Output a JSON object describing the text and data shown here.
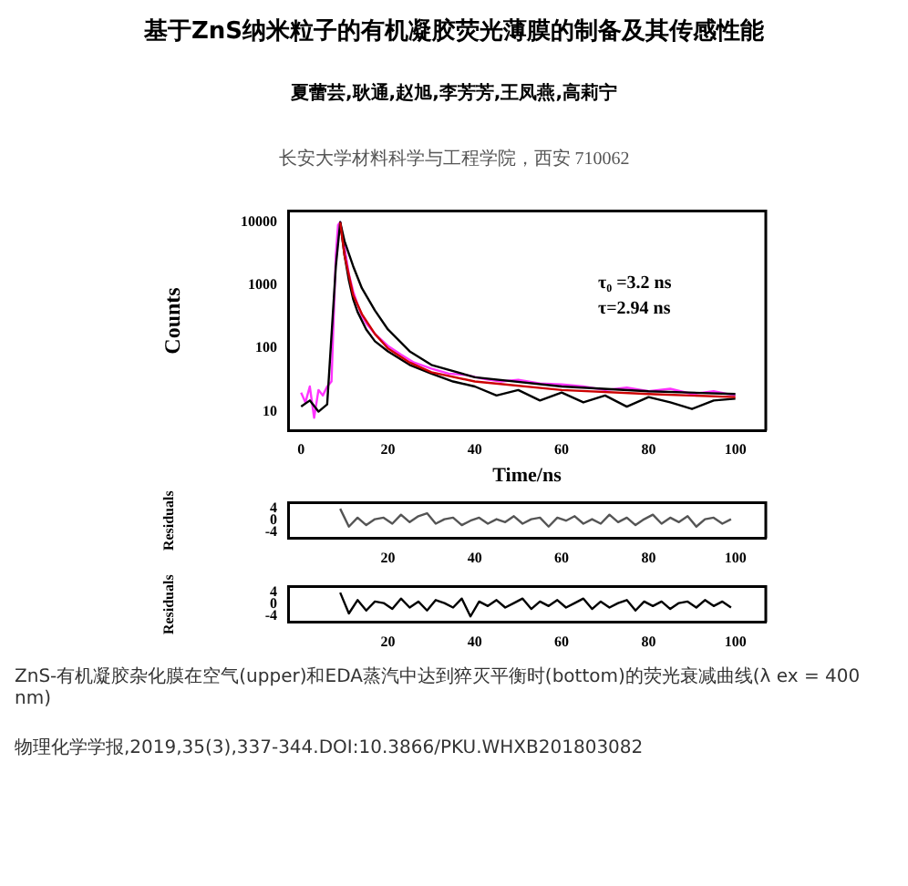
{
  "chart_data": [
    {
      "type": "line",
      "title": "基于ZnS纳米粒子的有机凝胶荧光薄膜的制备及其传感性能",
      "subtitle": "夏蕾芸,耿通,赵旭,李芳芳,王凤燕,高莉宁",
      "annotations": [
        "长安大学材料科学与工程学院，西安 710062",
        "τ₀ =3.2 ns",
        "τ=2.94 ns"
      ],
      "xlabel": "Time/ns",
      "ylabel": "Counts",
      "log": "y",
      "grid": false,
      "legend": false,
      "marker": "none",
      "xlim": [
        -3,
        107
      ],
      "xticks": [
        0,
        20,
        40,
        60,
        80,
        100
      ],
      "ylim": [
        5,
        15000
      ],
      "yticks": [
        10,
        100,
        1000,
        10000
      ],
      "series": [
        {
          "color": "#ff33ff",
          "x": [
            0,
            1,
            2,
            3,
            4,
            5,
            6,
            7,
            7.5,
            8,
            8.5,
            9,
            10,
            11,
            12,
            13,
            14,
            15,
            17,
            20,
            23,
            26,
            30,
            34,
            38,
            42,
            46,
            50,
            55,
            60,
            65,
            70,
            75,
            80,
            85,
            90,
            95,
            100
          ],
          "values": [
            20,
            14,
            25,
            8,
            22,
            18,
            25,
            30,
            300,
            3000,
            9000,
            10000,
            4000,
            1500,
            800,
            500,
            330,
            250,
            170,
            110,
            80,
            60,
            48,
            40,
            38,
            33,
            30,
            32,
            28,
            27,
            25,
            22,
            24,
            21,
            23,
            19,
            21,
            18
          ]
        },
        {
          "color": "#000000",
          "x": [
            0,
            2,
            4,
            6,
            8,
            9,
            10,
            11,
            12,
            13,
            15,
            17,
            20,
            25,
            30,
            35,
            40,
            45,
            50,
            55,
            60,
            65,
            70,
            75,
            80,
            85,
            90,
            95,
            100
          ],
          "values": [
            12,
            15,
            10,
            13,
            2000,
            10000,
            3000,
            1200,
            600,
            380,
            200,
            130,
            90,
            55,
            40,
            30,
            25,
            18,
            22,
            15,
            20,
            14,
            18,
            12,
            17,
            14,
            11,
            15,
            16
          ]
        },
        {
          "color": "#000000",
          "x": [
            9,
            10,
            12,
            14,
            17,
            20,
            25,
            30,
            40,
            60,
            80,
            100
          ],
          "values": [
            10000,
            5000,
            2000,
            900,
            400,
            200,
            90,
            55,
            35,
            25,
            21,
            19
          ]
        },
        {
          "color": "#cc0000",
          "x": [
            9,
            10,
            12,
            14,
            17,
            20,
            25,
            30,
            40,
            60,
            80,
            100
          ],
          "values": [
            10000,
            3000,
            700,
            350,
            170,
            100,
            60,
            42,
            30,
            22,
            19,
            17
          ]
        }
      ]
    },
    {
      "type": "line",
      "ylabel": "Residuals",
      "grid": false,
      "legend": false,
      "marker": "none",
      "xlim": [
        -3,
        107
      ],
      "xticks": [
        20,
        40,
        60,
        80,
        100
      ],
      "ylim": [
        -6,
        6
      ],
      "yticks": [
        -4,
        0,
        4
      ],
      "series": [
        {
          "color": "#555555",
          "x": [
            9,
            11,
            13,
            15,
            17,
            19,
            21,
            23,
            25,
            27,
            29,
            31,
            33,
            35,
            37,
            39,
            41,
            43,
            45,
            47,
            49,
            51,
            53,
            55,
            57,
            59,
            61,
            63,
            65,
            67,
            69,
            71,
            73,
            75,
            77,
            79,
            81,
            83,
            85,
            87,
            89,
            91,
            93,
            95,
            97,
            99
          ],
          "values": [
            4,
            -2,
            1,
            -1.5,
            0.5,
            1,
            -1,
            2,
            -0.5,
            1.5,
            2.5,
            -1,
            0.5,
            1,
            -1.5,
            0,
            1,
            -1,
            0.5,
            -0.5,
            1.5,
            -1,
            0.5,
            1,
            -2,
            1,
            0,
            1.5,
            -1,
            0.5,
            -1,
            2,
            -0.5,
            1,
            -1.5,
            0.5,
            2,
            -1,
            1,
            -0.5,
            1.5,
            -2,
            0.5,
            1,
            -1,
            0.5
          ]
        }
      ]
    },
    {
      "type": "line",
      "ylabel": "Residuals",
      "grid": false,
      "legend": false,
      "marker": "none",
      "xlim": [
        -3,
        107
      ],
      "xticks": [
        20,
        40,
        60,
        80,
        100
      ],
      "ylim": [
        -6,
        6
      ],
      "yticks": [
        -4,
        0,
        4
      ],
      "annotations": [
        "ZnS-有机凝胶杂化膜在空气(upper)和EDA蒸汽中达到猝灭平衡时(bottom)的荧光衰减曲线(λ ex = 400 nm)",
        "物理化学学报,2019,35(3),337-344.DOI:10.3866/PKU.WHXB201803082"
      ],
      "series": [
        {
          "color": "#000000",
          "x": [
            9,
            11,
            13,
            15,
            17,
            19,
            21,
            23,
            25,
            27,
            29,
            31,
            33,
            35,
            37,
            39,
            41,
            43,
            45,
            47,
            49,
            51,
            53,
            55,
            57,
            59,
            61,
            63,
            65,
            67,
            69,
            71,
            73,
            75,
            77,
            79,
            81,
            83,
            85,
            87,
            89,
            91,
            93,
            95,
            97,
            99
          ],
          "values": [
            4,
            -3,
            1.5,
            -2,
            1,
            0.5,
            -1.5,
            2,
            -1,
            1,
            -2,
            1.5,
            0.5,
            -1,
            2,
            -4,
            1,
            -0.5,
            1.5,
            -1,
            0.5,
            2,
            -1.5,
            1,
            -0.5,
            1.5,
            -1,
            0.5,
            2,
            -1.5,
            1,
            -1,
            0.5,
            1.5,
            -2,
            1,
            -0.5,
            1,
            -1.5,
            0.5,
            1,
            -1,
            1.5,
            -0.5,
            1,
            -1
          ]
        }
      ]
    }
  ]
}
